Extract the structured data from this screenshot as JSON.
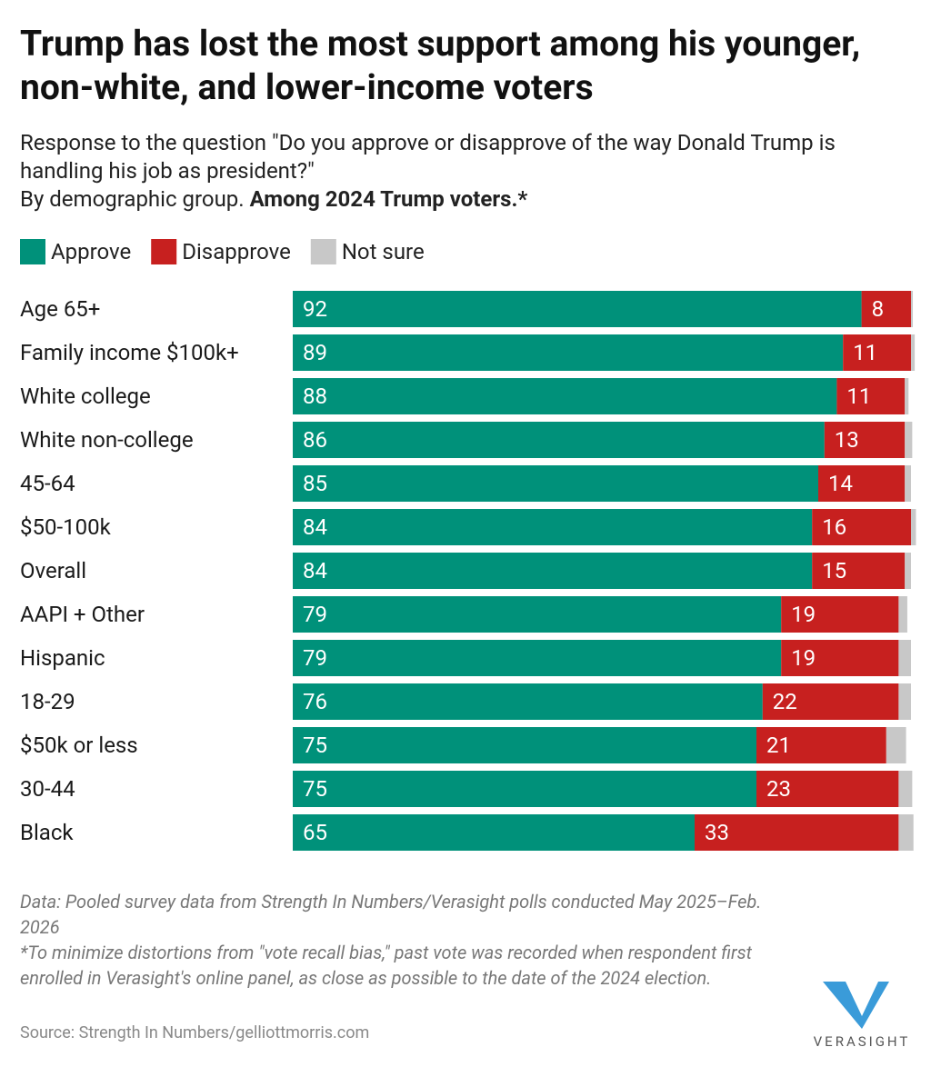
{
  "chart_data": {
    "type": "stacked-bar-horizontal",
    "title": "Trump has lost the most support among his younger, non-white, and lower-income voters",
    "subtitle": "Response to the question \"Do you approve or disapprove of the way Donald Trump is handling his job as president?\"",
    "subtitle_2": "By demographic group.",
    "subtitle_emphasis": "Among 2024 Trump voters.*",
    "categories": [
      "Age 65+",
      "Family income $100k+",
      "White college",
      "White non-college",
      "45-64",
      "$50-100k",
      "Overall",
      "AAPI + Other",
      "Hispanic",
      "18-29",
      "$50k or less",
      "30-44",
      "Black"
    ],
    "series": [
      {
        "name": "Approve",
        "color": "#00917a",
        "values": [
          92,
          89,
          88,
          86,
          85,
          84,
          84,
          79,
          79,
          76,
          75,
          75,
          65
        ]
      },
      {
        "name": "Disapprove",
        "color": "#c7201f",
        "values": [
          8,
          11,
          11,
          13,
          14,
          16,
          15,
          19,
          19,
          22,
          21,
          23,
          33
        ]
      },
      {
        "name": "Not sure",
        "color": "#c8c8c8",
        "values": [
          0.3,
          0.6,
          0.6,
          1.2,
          1,
          0.8,
          1,
          1.4,
          2,
          2,
          3.2,
          2.2,
          2.4
        ]
      }
    ],
    "xlim": [
      0,
      100
    ],
    "notes": [
      "Data: Pooled survey data from Strength In Numbers/Verasight polls conducted May 2025–Feb. 2026",
      "*To minimize distortions from \"vote recall bias,\" past vote was recorded when respondent first enrolled in Verasight's online panel, as close as possible to the date of the 2024 election."
    ],
    "source": "Source: Strength In Numbers/gelliottmorris.com",
    "logo": "VERASIGHT"
  }
}
